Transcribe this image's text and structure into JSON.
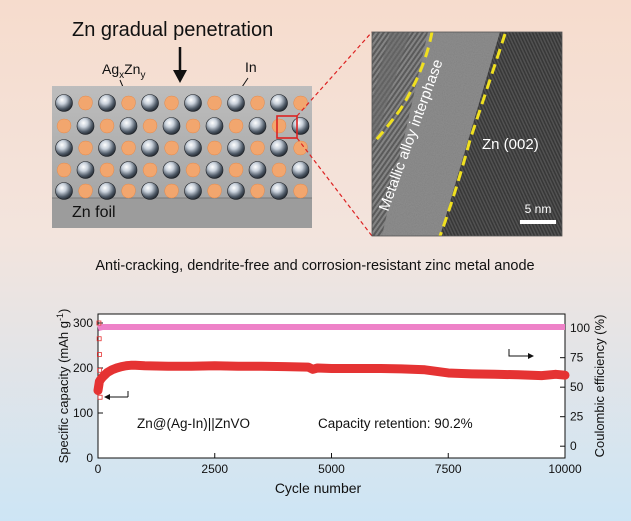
{
  "top_title": "Zn gradual penetration",
  "labels": {
    "alloy_base": "Ag",
    "alloy_sub_x": "x",
    "alloy_mid": "Zn",
    "alloy_sub_y": "y",
    "indium": "In",
    "foil": "Zn foil"
  },
  "tem": {
    "interphase_label": "Metallic alloy interphase",
    "zn_label": "Zn (002)",
    "scale_bar": "5 nm"
  },
  "subtitle": "Anti-cracking, dendrite-free and corrosion-resistant zinc metal anode",
  "colors": {
    "bg_top": "#f6dccd",
    "bg_bottom": "#cfe6f5",
    "capacity": "#e53333",
    "coulombic": "#ee82c8",
    "interphase_dash": "#f0e020",
    "zoom_box": "#dd2222"
  },
  "chart_data": {
    "type": "line",
    "xlabel": "Cycle number",
    "ylabel_left_main": "Specific capacity (mAh g",
    "ylabel_left_sup": "-1",
    "ylabel_left_end": ")",
    "ylabel_right": "Coulombic efficiency (%)",
    "x_ticks": [
      "0",
      "2500",
      "5000",
      "7500",
      "10000"
    ],
    "y_left_ticks": [
      "0",
      "100",
      "200",
      "300"
    ],
    "y_right_ticks": [
      "0",
      "25",
      "50",
      "75",
      "100"
    ],
    "xlim": [
      0,
      10000
    ],
    "ylim_left": [
      0,
      320
    ],
    "ylim_right": [
      -10,
      112
    ],
    "series": [
      {
        "name": "Specific capacity",
        "axis": "left",
        "x": [
          0,
          30,
          60,
          100,
          150,
          200,
          300,
          400,
          500,
          600,
          700,
          800,
          1000,
          1500,
          2000,
          2500,
          3000,
          3500,
          4000,
          4500,
          4600,
          4700,
          5000,
          5500,
          6000,
          6500,
          7000,
          7500,
          8000,
          8500,
          9000,
          9500,
          9800,
          10000
        ],
        "y": [
          150,
          170,
          175,
          180,
          185,
          190,
          196,
          200,
          203,
          205,
          206,
          206,
          205,
          204,
          204,
          205,
          204,
          204,
          203,
          202,
          197,
          200,
          199,
          199,
          199,
          198,
          196,
          189,
          187,
          186,
          185,
          183,
          186,
          184
        ]
      },
      {
        "name": "Coulombic efficiency",
        "axis": "right",
        "x": [
          0,
          100,
          500,
          1000,
          2500,
          5000,
          7500,
          10000
        ],
        "y": [
          100,
          101,
          101,
          101,
          101,
          101,
          101,
          101
        ]
      }
    ],
    "annotations": {
      "system": "Zn@(Ag-In)||ZnVO",
      "retention": "Capacity retention: 90.2%"
    }
  }
}
